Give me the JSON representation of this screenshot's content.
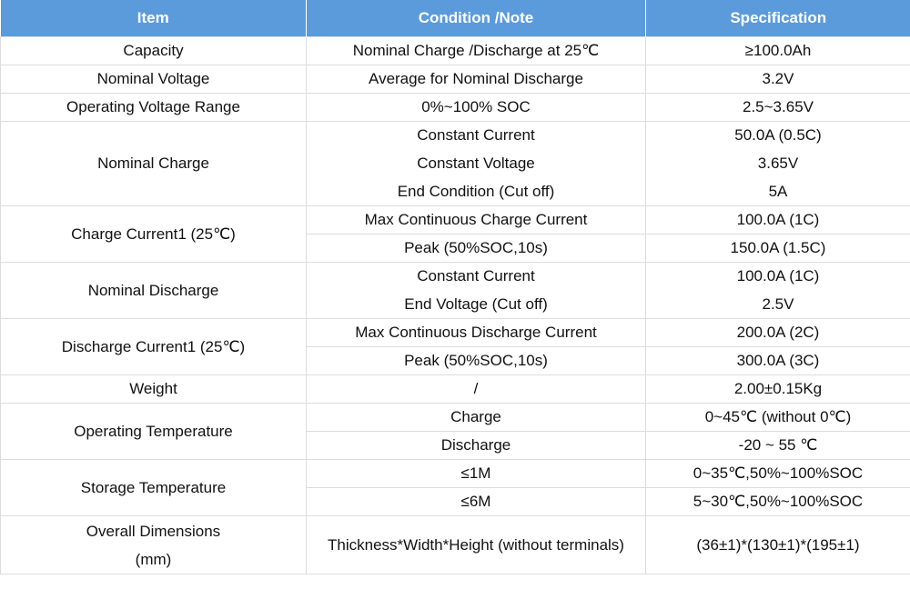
{
  "table": {
    "headers": [
      "Item",
      "Condition /Note",
      "Specification"
    ],
    "rows": {
      "capacity": {
        "item": "Capacity",
        "condition": "Nominal Charge /Discharge at 25℃",
        "spec": "≥100.0Ah"
      },
      "nominal_voltage": {
        "item": "Nominal Voltage",
        "condition": "Average for Nominal Discharge",
        "spec": "3.2V"
      },
      "operating_voltage_range": {
        "item": "Operating Voltage Range",
        "condition": "0%~100% SOC",
        "spec": "2.5~3.65V"
      },
      "nominal_charge": {
        "item": "Nominal Charge",
        "sub": [
          {
            "condition": "Constant Current",
            "spec": "50.0A (0.5C)"
          },
          {
            "condition": "Constant Voltage",
            "spec": "3.65V"
          },
          {
            "condition": "End Condition (Cut off)",
            "spec": "5A"
          }
        ]
      },
      "charge_current": {
        "item": "Charge Current1 (25℃)",
        "sub": [
          {
            "condition": "Max Continuous Charge Current",
            "spec": "100.0A (1C)"
          },
          {
            "condition": "Peak (50%SOC,10s)",
            "spec": "150.0A (1.5C)"
          }
        ]
      },
      "nominal_discharge": {
        "item": "Nominal Discharge",
        "sub": [
          {
            "condition": "Constant Current",
            "spec": "100.0A (1C)"
          },
          {
            "condition": "End Voltage (Cut off)",
            "spec": "2.5V"
          }
        ]
      },
      "discharge_current": {
        "item": "Discharge Current1 (25℃)",
        "sub": [
          {
            "condition": "Max Continuous Discharge Current",
            "spec": "200.0A (2C)"
          },
          {
            "condition": "Peak (50%SOC,10s)",
            "spec": "300.0A (3C)"
          }
        ]
      },
      "weight": {
        "item": "Weight",
        "condition": "/",
        "spec": "2.00±0.15Kg"
      },
      "operating_temperature": {
        "item": "Operating Temperature",
        "sub": [
          {
            "condition": "Charge",
            "spec": "0~45℃ (without 0℃)"
          },
          {
            "condition": "Discharge",
            "spec": "-20 ~ 55 ℃"
          }
        ]
      },
      "storage_temperature": {
        "item": "Storage Temperature",
        "sub": [
          {
            "condition": "≤1M",
            "spec": "0~35℃,50%~100%SOC"
          },
          {
            "condition": "≤6M",
            "spec": "5~30℃,50%~100%SOC"
          }
        ]
      },
      "overall_dimensions": {
        "item_line1": "Overall Dimensions",
        "item_line2": "(mm)",
        "condition": "Thickness*Width*Height (without terminals)",
        "spec": "(36±1)*(130±1)*(195±1)"
      }
    }
  }
}
